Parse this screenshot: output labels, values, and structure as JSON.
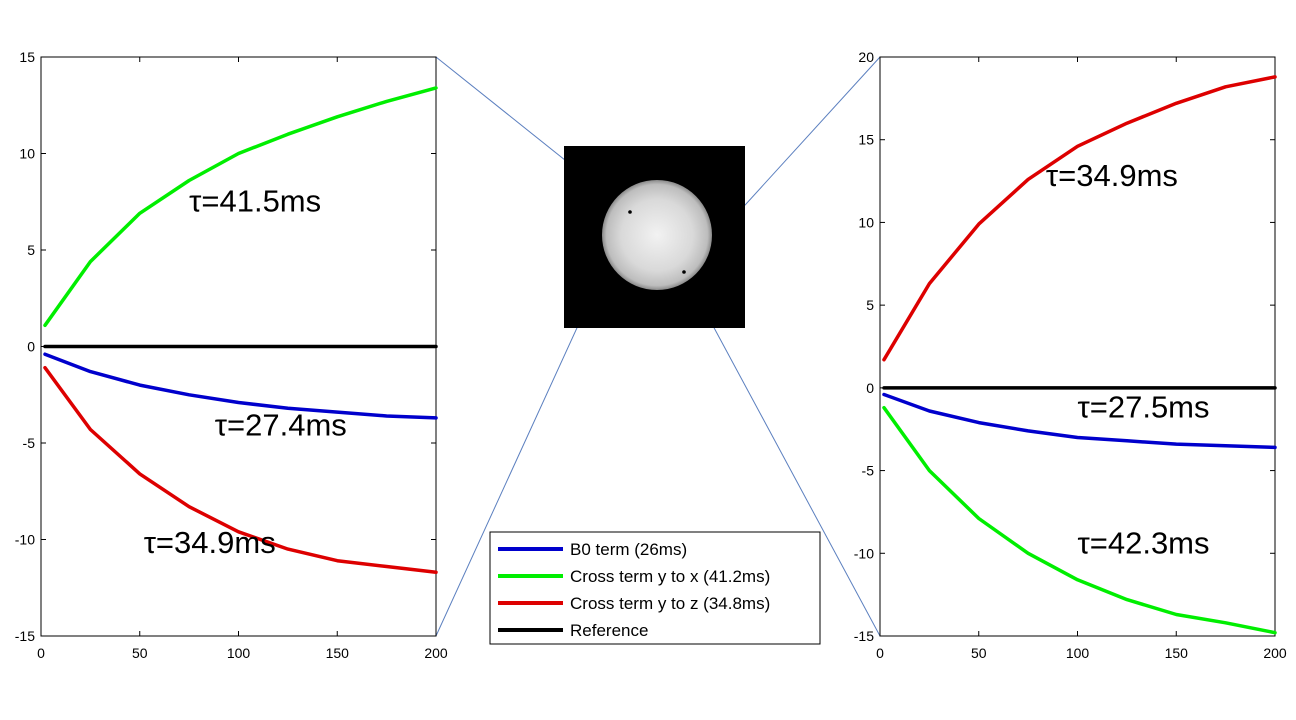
{
  "figure": {
    "legend": {
      "entries": [
        {
          "label": "B0 term (26ms)",
          "color": "#0000cc"
        },
        {
          "label": "Cross term y to x (41.2ms)",
          "color": "#00ee00"
        },
        {
          "label": "Cross term y to z (34.8ms)",
          "color": "#dd0000"
        },
        {
          "label": "Reference",
          "color": "#000000"
        }
      ]
    },
    "inset": {
      "description_icon": "phantom-sphere-image",
      "marker_colors": [
        "#000000"
      ]
    }
  },
  "chart_data": [
    {
      "type": "line",
      "title": "",
      "xlabel": "",
      "ylabel": "",
      "xlim": [
        0,
        200
      ],
      "ylim": [
        -15,
        15
      ],
      "xticks": [
        "0",
        "50",
        "100",
        "150",
        "200"
      ],
      "yticks": [
        "15",
        "10",
        "5",
        "0",
        "-5",
        "-10",
        "-15"
      ],
      "grid": false,
      "series": [
        {
          "color": "#00ee00",
          "x": [
            2,
            25,
            50,
            75,
            100,
            125,
            150,
            175,
            200
          ],
          "values": [
            1.1,
            4.4,
            6.9,
            8.6,
            10.0,
            11.0,
            11.9,
            12.7,
            13.4
          ]
        },
        {
          "color": "#000000",
          "x": [
            2,
            50,
            100,
            150,
            200
          ],
          "values": [
            0.0,
            0.0,
            0.0,
            0.0,
            0.0
          ]
        },
        {
          "color": "#0000cc",
          "x": [
            2,
            25,
            50,
            75,
            100,
            125,
            150,
            175,
            200
          ],
          "values": [
            -0.4,
            -1.3,
            -2.0,
            -2.5,
            -2.9,
            -3.2,
            -3.4,
            -3.6,
            -3.7
          ]
        },
        {
          "color": "#dd0000",
          "x": [
            2,
            25,
            50,
            75,
            100,
            125,
            150,
            175,
            200
          ],
          "values": [
            -1.1,
            -4.3,
            -6.6,
            -8.3,
            -9.6,
            -10.5,
            -11.1,
            -11.4,
            -11.7
          ]
        }
      ],
      "annotations": [
        {
          "text": "τ=41.5ms",
          "x": 75,
          "y": 7.0
        },
        {
          "text": "τ=27.4ms",
          "x": 88,
          "y": -4.6
        },
        {
          "text": "τ=34.9ms",
          "x": 52,
          "y": -10.7
        }
      ]
    },
    {
      "type": "line",
      "title": "",
      "xlabel": "",
      "ylabel": "",
      "xlim": [
        0,
        200
      ],
      "ylim": [
        -15,
        20
      ],
      "xticks": [
        "0",
        "50",
        "100",
        "150",
        "200"
      ],
      "yticks": [
        "20",
        "15",
        "10",
        "5",
        "0",
        "-5",
        "-10",
        "-15"
      ],
      "grid": false,
      "series": [
        {
          "color": "#dd0000",
          "x": [
            2,
            25,
            50,
            75,
            100,
            125,
            150,
            175,
            200
          ],
          "values": [
            1.7,
            6.3,
            9.9,
            12.6,
            14.6,
            16.0,
            17.2,
            18.2,
            18.8
          ]
        },
        {
          "color": "#000000",
          "x": [
            2,
            50,
            100,
            150,
            200
          ],
          "values": [
            0.0,
            0.0,
            0.0,
            0.0,
            0.0
          ]
        },
        {
          "color": "#0000cc",
          "x": [
            2,
            25,
            50,
            75,
            100,
            125,
            150,
            175,
            200
          ],
          "values": [
            -0.4,
            -1.4,
            -2.1,
            -2.6,
            -3.0,
            -3.2,
            -3.4,
            -3.5,
            -3.6
          ]
        },
        {
          "color": "#00ee00",
          "x": [
            2,
            25,
            50,
            75,
            100,
            125,
            150,
            175,
            200
          ],
          "values": [
            -1.2,
            -5.0,
            -7.9,
            -10.0,
            -11.6,
            -12.8,
            -13.7,
            -14.2,
            -14.8
          ]
        }
      ],
      "annotations": [
        {
          "text": "τ=34.9ms",
          "x": 84,
          "y": 12.2
        },
        {
          "text": "τ=27.5ms",
          "x": 100,
          "y": -1.8
        },
        {
          "text": "τ=42.3ms",
          "x": 100,
          "y": -10.0
        }
      ]
    }
  ]
}
